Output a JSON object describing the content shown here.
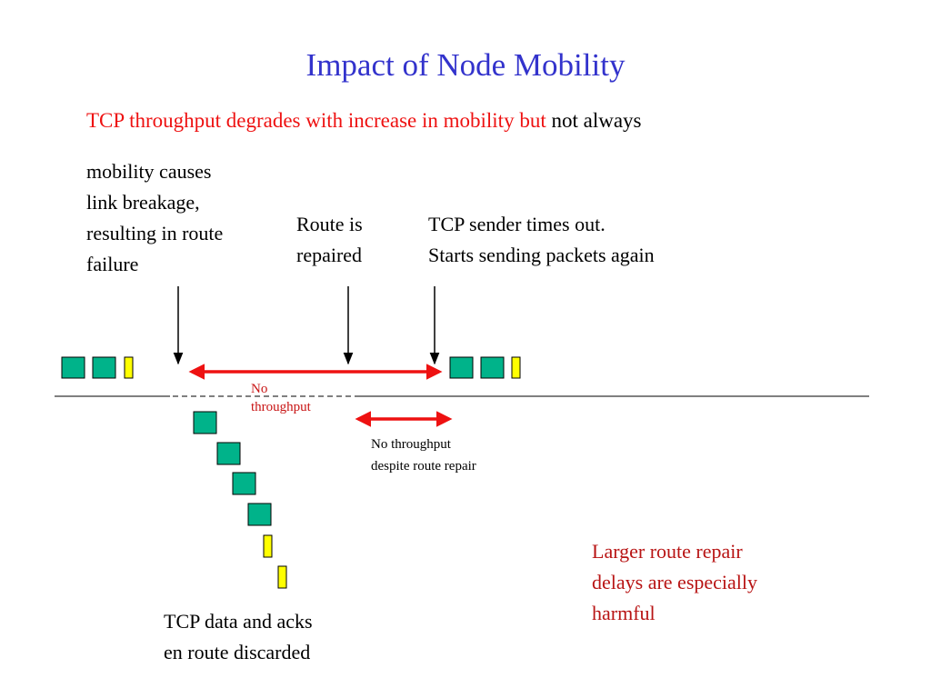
{
  "title": "Impact of Node Mobility",
  "subtitle": {
    "red_part": "TCP throughput degrades with increase in mobility but",
    "black_part": "not always"
  },
  "labels": {
    "mobility": [
      "mobility causes",
      "link breakage,",
      "resulting in route",
      "failure"
    ],
    "repaired": [
      "Route is",
      "repaired"
    ],
    "timeout": [
      "TCP sender times out.",
      "Starts sending packets again"
    ],
    "no_throughput": [
      "No",
      "throughput"
    ],
    "no_throughput_despite": [
      "No throughput",
      "despite route repair"
    ],
    "discarded": [
      "TCP data and acks",
      "en route discarded"
    ],
    "harmful": [
      "Larger route repair",
      "delays are especially",
      "harmful"
    ]
  },
  "colors": {
    "title": "#3333cc",
    "subtitle_red": "#ee1111",
    "arrow_red": "#ee1111",
    "packet_green": "#00b38a",
    "ack_yellow": "#ffff00",
    "harmful_text": "#b81414"
  }
}
